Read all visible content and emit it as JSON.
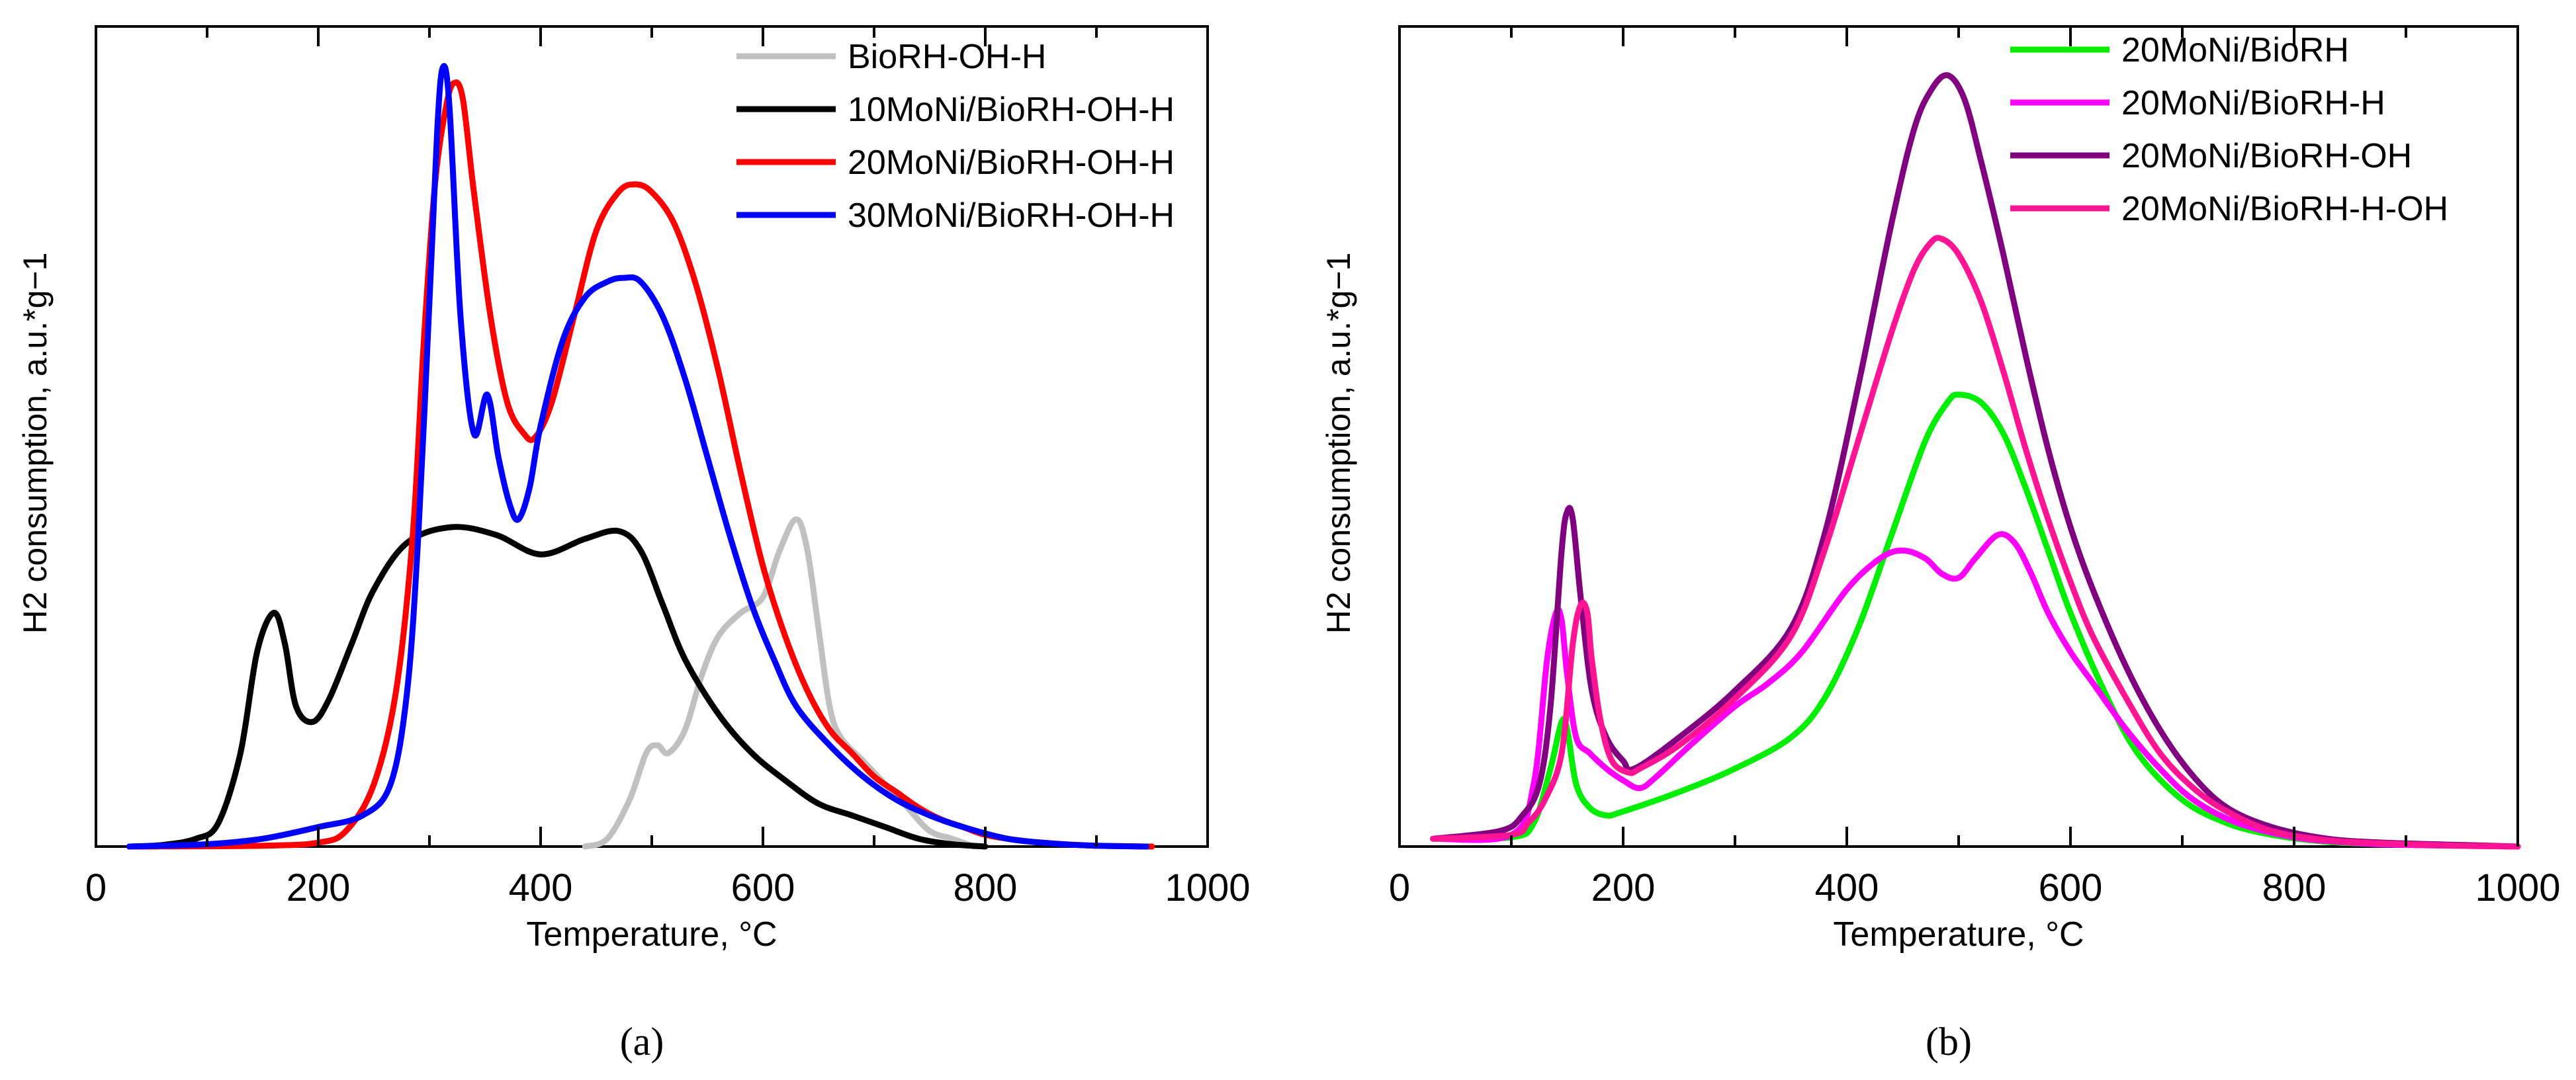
{
  "figure": {
    "panels": [
      {
        "id": "a",
        "caption": "(a)"
      },
      {
        "id": "b",
        "caption": "(b)"
      }
    ]
  },
  "chart_data": [
    {
      "id": "a",
      "type": "line",
      "title": "",
      "xlabel": "Temperature, °C",
      "ylabel": "H2 consumption, a.u.*g−1",
      "xlim": [
        0,
        1000
      ],
      "ylim": [
        0,
        100
      ],
      "xticks": [
        "0",
        "200",
        "400",
        "600",
        "800",
        "1000"
      ],
      "grid": false,
      "legend_position": "top-right",
      "series": [
        {
          "name": "BioRH-OH-H",
          "color": "#c0c0c0",
          "x": [
            440,
            460,
            480,
            495,
            505,
            515,
            530,
            545,
            560,
            580,
            600,
            615,
            630,
            640,
            650,
            660,
            670,
            690,
            710,
            730,
            750,
            770,
            790
          ],
          "y": [
            0,
            1,
            6,
            12,
            13,
            12,
            15,
            22,
            27,
            30,
            32,
            38,
            42,
            38,
            28,
            18,
            14,
            11,
            8,
            5,
            2,
            1,
            0
          ]
        },
        {
          "name": "10MoNi/BioRH-OH-H",
          "color": "#000000",
          "x": [
            30,
            60,
            90,
            110,
            130,
            145,
            160,
            170,
            180,
            195,
            210,
            230,
            250,
            280,
            320,
            360,
            400,
            440,
            470,
            490,
            510,
            530,
            560,
            590,
            620,
            650,
            680,
            710,
            740,
            770,
            800
          ],
          "y": [
            0,
            0.2,
            1,
            3,
            12,
            25,
            30,
            26,
            18,
            16,
            19,
            26,
            33,
            39,
            41,
            40,
            37.5,
            39.5,
            40.5,
            38,
            31,
            24,
            17,
            12,
            8.5,
            5.5,
            4,
            2.5,
            1,
            0.3,
            0
          ]
        },
        {
          "name": "20MoNi/BioRH-OH-H",
          "color": "#ff0000",
          "x": [
            30,
            150,
            200,
            225,
            250,
            270,
            285,
            295,
            305,
            315,
            322,
            330,
            340,
            355,
            370,
            385,
            395,
            410,
            430,
            450,
            470,
            485,
            500,
            520,
            540,
            560,
            580,
            600,
            620,
            640,
            660,
            680,
            700,
            720,
            740,
            760,
            780,
            800,
            830,
            860,
            900,
            950
          ],
          "y": [
            0,
            0.1,
            0.5,
            2,
            8,
            20,
            40,
            65,
            85,
            95,
            98,
            96,
            84,
            68,
            57,
            53,
            52.5,
            57,
            68,
            79,
            84,
            85,
            84,
            80,
            72,
            61,
            48,
            36,
            27,
            20,
            15,
            12,
            9,
            7,
            5,
            3.5,
            2.5,
            1.5,
            0.8,
            0.4,
            0.1,
            0
          ]
        },
        {
          "name": "30MoNi/BioRH-OH-H",
          "color": "#0000ff",
          "x": [
            30,
            100,
            150,
            200,
            240,
            265,
            280,
            290,
            300,
            307,
            312,
            318,
            328,
            340,
            352,
            362,
            372,
            380,
            390,
            400,
            420,
            440,
            460,
            475,
            490,
            510,
            530,
            550,
            570,
            590,
            610,
            630,
            660,
            690,
            720,
            750,
            780,
            820,
            860,
            900,
            945
          ],
          "y": [
            0,
            0.3,
            1,
            2.5,
            4,
            8,
            20,
            40,
            70,
            92,
            100,
            95,
            68,
            53,
            58,
            50,
            44,
            42,
            46,
            54,
            65,
            70.5,
            72.5,
            73,
            72.5,
            68,
            60,
            50,
            40,
            31,
            24,
            18,
            13,
            9,
            6,
            4,
            2.5,
            1,
            0.4,
            0.1,
            0
          ]
        }
      ]
    },
    {
      "id": "b",
      "type": "line",
      "title": "",
      "xlabel": "Temperature, °C",
      "ylabel": "H2 consumption, a.u.*g−1",
      "xlim": [
        0,
        1000
      ],
      "ylim": [
        0,
        100
      ],
      "xticks": [
        "0",
        "200",
        "400",
        "600",
        "800",
        "1000"
      ],
      "grid": false,
      "legend_position": "top-right",
      "series": [
        {
          "name": "20MoNi/BioRH",
          "color": "#00ee00",
          "x": [
            30,
            100,
            120,
            135,
            145,
            150,
            158,
            170,
            185,
            200,
            250,
            300,
            350,
            380,
            410,
            440,
            470,
            490,
            500,
            520,
            540,
            560,
            580,
            600,
            630,
            660,
            700,
            740,
            780,
            830,
            880,
            950,
            1000
          ],
          "y": [
            1,
            1.2,
            3,
            10,
            16,
            15,
            8,
            5,
            4,
            4.5,
            7,
            10,
            14,
            19,
            28,
            40,
            52,
            57,
            58,
            57,
            53,
            46,
            38,
            30,
            20,
            12,
            6,
            3,
            1.5,
            0.6,
            0.3,
            0.1,
            0
          ]
        },
        {
          "name": "20MoNi/BioRH-H",
          "color": "#ff00ff",
          "x": [
            30,
            100,
            120,
            132,
            140,
            145,
            150,
            158,
            170,
            185,
            200,
            215,
            230,
            260,
            300,
            330,
            360,
            400,
            430,
            450,
            470,
            485,
            500,
            515,
            535,
            550,
            565,
            580,
            600,
            620,
            650,
            680,
            710,
            750,
            800,
            850,
            900,
            1000
          ],
          "y": [
            1,
            1.5,
            8,
            24,
            30,
            29,
            22,
            14,
            12,
            10,
            8.5,
            7.5,
            9,
            13,
            18,
            21,
            25,
            33,
            37,
            38,
            37,
            35,
            34.5,
            37,
            40,
            39,
            35,
            30,
            25,
            21,
            15,
            10,
            6,
            3,
            1.2,
            0.5,
            0.2,
            0
          ]
        },
        {
          "name": "20MoNi/BioRH-OH",
          "color": "#800080",
          "x": [
            30,
            90,
            110,
            125,
            135,
            145,
            150,
            155,
            162,
            172,
            185,
            200,
            210,
            250,
            300,
            350,
            380,
            410,
            440,
            460,
            475,
            490,
            505,
            520,
            540,
            560,
            580,
            600,
            620,
            650,
            680,
            710,
            740,
            780,
            830,
            880,
            950,
            1000
          ],
          "y": [
            1,
            2,
            4,
            8,
            18,
            38,
            43,
            42,
            32,
            20,
            14,
            11,
            10,
            14,
            20,
            28,
            40,
            59,
            80,
            92,
            97,
            99,
            96,
            88,
            76,
            63,
            51,
            41,
            33,
            23,
            15,
            9,
            5,
            2.5,
            1,
            0.5,
            0.2,
            0
          ]
        },
        {
          "name": "20MoNi/BioRH-H-OH",
          "color": "#ff1493",
          "x": [
            30,
            100,
            115,
            130,
            145,
            155,
            162,
            168,
            172,
            180,
            190,
            205,
            215,
            250,
            300,
            350,
            380,
            410,
            440,
            460,
            475,
            485,
            500,
            520,
            540,
            560,
            580,
            600,
            620,
            650,
            680,
            710,
            740,
            780,
            830,
            880,
            950,
            1000
          ],
          "y": [
            1,
            1.5,
            3,
            6,
            12,
            26,
            31,
            30,
            24,
            16,
            11,
            9.5,
            10,
            13,
            19,
            27,
            38,
            52,
            66,
            74,
            77.5,
            78,
            76,
            70,
            61,
            51,
            42,
            34,
            27,
            19,
            12,
            7.5,
            4.5,
            2,
            0.8,
            0.4,
            0.1,
            0
          ]
        }
      ]
    }
  ]
}
